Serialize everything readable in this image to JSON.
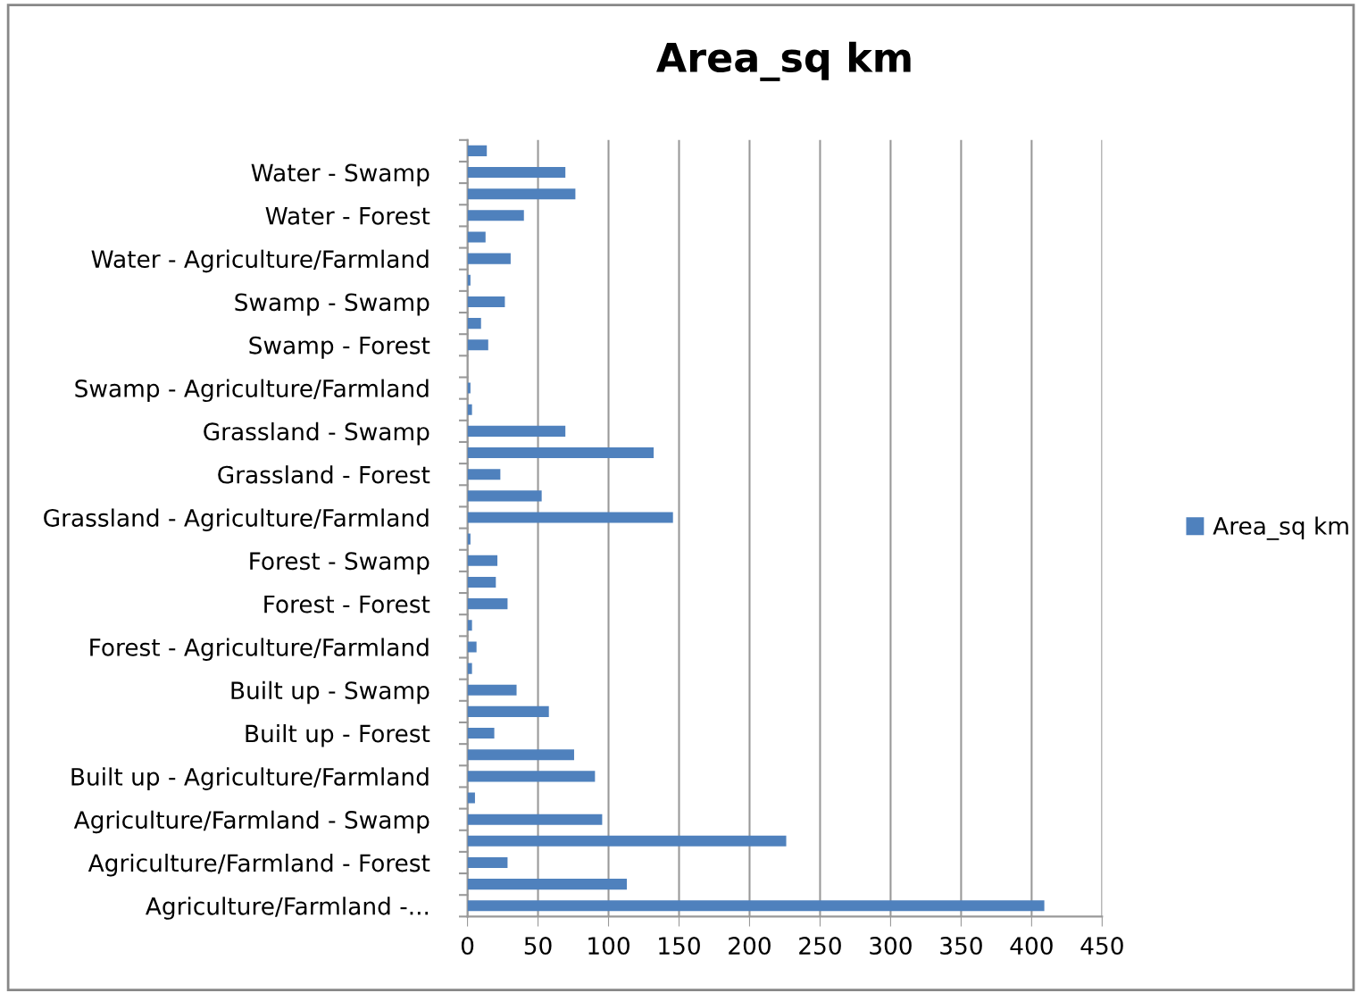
{
  "chart_data": {
    "type": "bar",
    "orientation": "horizontal",
    "title": "Area_sq km",
    "categories": [
      null,
      "Water - Swamp",
      null,
      "Water - Forest",
      null,
      "Water - Agriculture/Farmland",
      null,
      "Swamp - Swamp",
      null,
      "Swamp - Forest",
      null,
      "Swamp - Agriculture/Farmland",
      null,
      "Grassland - Swamp",
      null,
      "Grassland - Forest",
      null,
      "Grassland - Agriculture/Farmland",
      null,
      "Forest - Swamp",
      null,
      "Forest - Forest",
      null,
      "Forest - Agriculture/Farmland",
      null,
      "Built up - Swamp",
      null,
      "Built up - Forest",
      null,
      "Built up - Agriculture/Farmland",
      null,
      "Agriculture/Farmland - Swamp",
      null,
      "Agriculture/Farmland - Forest",
      null,
      "Agriculture/Farmland -..."
    ],
    "series": [
      {
        "name": "Area_sq km",
        "color": "#4f81bd",
        "values": [
          13.7,
          69.4,
          76.5,
          40,
          12.8,
          30.6,
          2.1,
          26.5,
          9.6,
          14.7,
          0,
          2.1,
          3.2,
          69.4,
          132,
          23.3,
          52.6,
          145.7,
          2.1,
          21.2,
          20.1,
          28.4,
          3.2,
          6.4,
          3.2,
          34.8,
          57.7,
          19,
          75.6,
          90.4,
          5.3,
          95.5,
          226,
          28.4,
          113,
          409
        ]
      }
    ],
    "xlim": [
      0,
      450
    ],
    "xticks": [
      0,
      50,
      100,
      150,
      200,
      250,
      300,
      350,
      400,
      450
    ],
    "grid": "x",
    "legend": "right"
  }
}
